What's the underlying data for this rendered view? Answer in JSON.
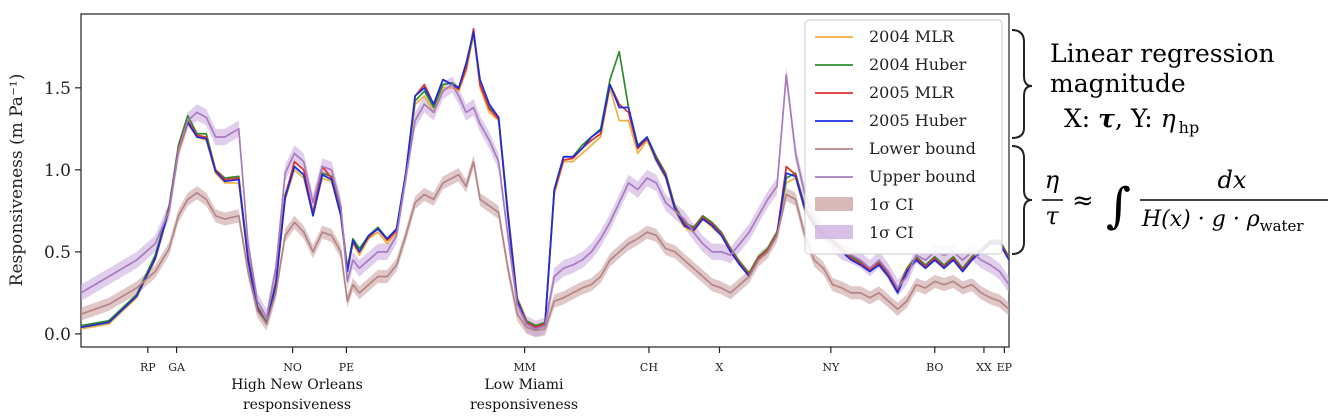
{
  "chart_data": {
    "type": "line",
    "ylabel": "Responsiveness (m Pa⁻¹)",
    "ylim": [
      -0.08,
      1.95
    ],
    "yticks": [
      0.0,
      0.5,
      1.0,
      1.5
    ],
    "ytick_labels": [
      "0.0",
      "0.5",
      "1.0",
      "1.5"
    ],
    "xlim": [
      0,
      100
    ],
    "xticks": [
      {
        "label": "RP",
        "x": 7.2
      },
      {
        "label": "GA",
        "x": 10.3
      },
      {
        "label": "NO",
        "x": 22.8
      },
      {
        "label": "PE",
        "x": 28.6
      },
      {
        "label": "MM",
        "x": 47.8
      },
      {
        "label": "CH",
        "x": 61.2
      },
      {
        "label": "X",
        "x": 68.8
      },
      {
        "label": "NY",
        "x": 80.8
      },
      {
        "label": "BO",
        "x": 92.0
      },
      {
        "label": "XX",
        "x": 97.3
      },
      {
        "label": "EP",
        "x": 99.5
      }
    ],
    "legend_position": "top-right",
    "x": [
      0,
      3,
      6,
      8,
      9.5,
      10.5,
      11.5,
      12.5,
      13.5,
      14.5,
      15.5,
      17,
      18,
      19,
      20,
      21,
      22,
      23,
      24,
      25,
      26,
      27,
      28,
      28.7,
      29.3,
      30,
      31,
      32,
      33,
      34,
      35,
      36,
      37,
      38,
      39,
      40,
      40.7,
      41.5,
      42.3,
      43,
      44,
      45,
      46,
      47,
      48,
      49,
      50,
      51,
      52,
      53,
      54,
      55,
      56,
      57,
      58,
      59,
      60,
      61,
      62,
      63,
      64,
      65,
      66,
      67,
      68,
      69,
      70,
      71,
      72,
      73,
      74,
      75,
      76,
      77,
      78,
      79,
      80,
      81,
      82,
      83,
      84,
      85,
      86,
      87,
      88,
      89,
      90,
      91,
      92,
      93,
      94,
      95,
      96,
      97,
      98,
      99,
      100
    ],
    "series": [
      {
        "name": "2004 MLR",
        "color": "#f0b040",
        "values": [
          0.03,
          0.06,
          0.22,
          0.45,
          0.75,
          1.1,
          1.28,
          1.2,
          1.18,
          0.98,
          0.92,
          0.92,
          0.45,
          0.15,
          0.06,
          0.3,
          0.82,
          1.0,
          0.95,
          0.72,
          0.95,
          0.93,
          0.72,
          0.38,
          0.55,
          0.48,
          0.58,
          0.62,
          0.55,
          0.62,
          0.95,
          1.4,
          1.45,
          1.35,
          1.5,
          1.5,
          1.48,
          1.6,
          1.82,
          1.5,
          1.35,
          1.3,
          0.72,
          0.2,
          0.06,
          0.03,
          0.05,
          0.85,
          1.05,
          1.05,
          1.1,
          1.15,
          1.2,
          1.5,
          1.3,
          1.3,
          1.1,
          1.18,
          1.05,
          0.95,
          0.75,
          0.65,
          0.62,
          0.7,
          0.65,
          0.6,
          0.5,
          0.42,
          0.35,
          0.45,
          0.5,
          0.6,
          0.92,
          0.95,
          0.75,
          0.65,
          0.6,
          0.55,
          0.5,
          0.45,
          0.42,
          0.38,
          0.42,
          0.35,
          0.25,
          0.38,
          0.45,
          0.4,
          0.45,
          0.4,
          0.45,
          0.38,
          0.45,
          0.5,
          0.55,
          0.55,
          0.45
        ]
      },
      {
        "name": "2004 Huber",
        "color": "#2e8b2e",
        "values": [
          0.05,
          0.08,
          0.24,
          0.48,
          0.78,
          1.15,
          1.33,
          1.22,
          1.22,
          1.0,
          0.95,
          0.96,
          0.47,
          0.17,
          0.07,
          0.32,
          0.85,
          1.02,
          0.97,
          0.74,
          0.98,
          0.96,
          0.74,
          0.4,
          0.58,
          0.52,
          0.6,
          0.65,
          0.58,
          0.64,
          0.98,
          1.42,
          1.48,
          1.38,
          1.52,
          1.53,
          1.5,
          1.62,
          1.84,
          1.52,
          1.38,
          1.32,
          0.75,
          0.22,
          0.08,
          0.05,
          0.07,
          0.88,
          1.08,
          1.08,
          1.15,
          1.2,
          1.25,
          1.55,
          1.72,
          1.38,
          1.15,
          1.2,
          1.08,
          0.98,
          0.78,
          0.68,
          0.65,
          0.72,
          0.68,
          0.62,
          0.52,
          0.44,
          0.37,
          0.47,
          0.52,
          0.62,
          0.95,
          0.98,
          0.78,
          0.68,
          0.62,
          0.57,
          0.52,
          0.47,
          0.44,
          0.4,
          0.44,
          0.37,
          0.27,
          0.4,
          0.47,
          0.42,
          0.47,
          0.42,
          0.47,
          0.4,
          0.47,
          0.52,
          0.57,
          0.57,
          0.47
        ]
      },
      {
        "name": "2005 MLR",
        "color": "#e03030",
        "values": [
          0.04,
          0.07,
          0.23,
          0.46,
          0.77,
          1.13,
          1.3,
          1.21,
          1.2,
          1.0,
          0.94,
          0.95,
          0.46,
          0.16,
          0.06,
          0.31,
          0.84,
          1.05,
          1.0,
          0.73,
          1.02,
          0.95,
          0.73,
          0.39,
          0.56,
          0.5,
          0.59,
          0.64,
          0.57,
          0.63,
          0.97,
          1.45,
          1.52,
          1.4,
          1.55,
          1.52,
          1.49,
          1.62,
          1.86,
          1.52,
          1.37,
          1.31,
          0.74,
          0.21,
          0.07,
          0.04,
          0.06,
          0.87,
          1.06,
          1.07,
          1.13,
          1.18,
          1.22,
          1.52,
          1.4,
          1.35,
          1.13,
          1.19,
          1.07,
          0.97,
          0.77,
          0.67,
          0.64,
          0.71,
          0.67,
          0.61,
          0.51,
          0.43,
          0.36,
          0.46,
          0.51,
          0.61,
          1.02,
          0.97,
          0.77,
          0.67,
          0.61,
          0.56,
          0.51,
          0.46,
          0.43,
          0.39,
          0.43,
          0.36,
          0.26,
          0.39,
          0.46,
          0.41,
          0.46,
          0.41,
          0.46,
          0.39,
          0.46,
          0.51,
          0.56,
          0.56,
          0.46
        ]
      },
      {
        "name": "2005 Huber",
        "color": "#1a2ee0",
        "values": [
          0.04,
          0.07,
          0.23,
          0.46,
          0.76,
          1.12,
          1.29,
          1.2,
          1.19,
          0.99,
          0.93,
          0.94,
          0.45,
          0.15,
          0.06,
          0.3,
          0.83,
          1.02,
          0.97,
          0.72,
          0.97,
          0.94,
          0.72,
          0.38,
          0.57,
          0.5,
          0.6,
          0.64,
          0.58,
          0.64,
          0.98,
          1.45,
          1.5,
          1.4,
          1.55,
          1.52,
          1.5,
          1.65,
          1.84,
          1.55,
          1.4,
          1.32,
          0.72,
          0.2,
          0.06,
          0.03,
          0.05,
          0.88,
          1.08,
          1.08,
          1.13,
          1.2,
          1.24,
          1.52,
          1.38,
          1.38,
          1.14,
          1.2,
          1.06,
          0.96,
          0.76,
          0.66,
          0.63,
          0.7,
          0.66,
          0.6,
          0.5,
          0.42,
          0.35,
          0.45,
          0.5,
          0.6,
          0.98,
          0.96,
          0.76,
          0.66,
          0.6,
          0.55,
          0.5,
          0.45,
          0.42,
          0.38,
          0.42,
          0.35,
          0.25,
          0.38,
          0.45,
          0.4,
          0.45,
          0.4,
          0.45,
          0.38,
          0.45,
          0.5,
          0.55,
          0.55,
          0.45
        ]
      },
      {
        "name": "Lower bound",
        "color": "#b58585",
        "values": [
          0.12,
          0.18,
          0.28,
          0.38,
          0.52,
          0.72,
          0.82,
          0.86,
          0.82,
          0.72,
          0.7,
          0.72,
          0.38,
          0.14,
          0.06,
          0.25,
          0.6,
          0.68,
          0.62,
          0.5,
          0.62,
          0.6,
          0.5,
          0.2,
          0.3,
          0.25,
          0.3,
          0.35,
          0.35,
          0.42,
          0.6,
          0.8,
          0.85,
          0.82,
          0.92,
          0.95,
          0.97,
          0.9,
          1.05,
          0.82,
          0.78,
          0.74,
          0.4,
          0.12,
          0.04,
          0.02,
          0.03,
          0.2,
          0.22,
          0.25,
          0.28,
          0.3,
          0.35,
          0.45,
          0.5,
          0.55,
          0.58,
          0.62,
          0.6,
          0.52,
          0.5,
          0.45,
          0.4,
          0.35,
          0.3,
          0.28,
          0.25,
          0.3,
          0.35,
          0.45,
          0.5,
          0.6,
          0.85,
          0.82,
          0.6,
          0.45,
          0.4,
          0.3,
          0.28,
          0.25,
          0.25,
          0.22,
          0.25,
          0.2,
          0.15,
          0.2,
          0.3,
          0.28,
          0.32,
          0.3,
          0.32,
          0.28,
          0.3,
          0.25,
          0.22,
          0.2,
          0.15
        ]
      },
      {
        "name": "Upper bound",
        "color": "#a87bc0",
        "values": [
          0.25,
          0.35,
          0.45,
          0.55,
          0.75,
          1.12,
          1.3,
          1.35,
          1.32,
          1.2,
          1.2,
          1.25,
          0.55,
          0.2,
          0.1,
          0.4,
          0.98,
          1.1,
          1.05,
          0.8,
          1.02,
          1.0,
          0.78,
          0.32,
          0.45,
          0.4,
          0.45,
          0.5,
          0.5,
          0.6,
          0.95,
          1.3,
          1.4,
          1.35,
          1.48,
          1.52,
          1.45,
          1.35,
          1.38,
          1.28,
          1.18,
          1.05,
          0.6,
          0.18,
          0.06,
          0.03,
          0.05,
          0.35,
          0.4,
          0.42,
          0.45,
          0.5,
          0.58,
          0.68,
          0.8,
          0.92,
          0.88,
          0.95,
          0.92,
          0.8,
          0.75,
          0.7,
          0.62,
          0.55,
          0.5,
          0.5,
          0.48,
          0.55,
          0.62,
          0.72,
          0.82,
          0.9,
          1.58,
          1.1,
          0.85,
          0.7,
          0.62,
          0.55,
          0.5,
          0.48,
          0.45,
          0.4,
          0.45,
          0.38,
          0.28,
          0.35,
          0.48,
          0.45,
          0.5,
          0.48,
          0.5,
          0.45,
          0.5,
          0.45,
          0.42,
          0.38,
          0.3
        ]
      }
    ],
    "ci_bands": [
      {
        "label": "1σ CI",
        "color": "#c99a9a",
        "of_series": "Lower bound",
        "halfwidth": 0.04
      },
      {
        "label": "1σ CI",
        "color": "#c8a6dc",
        "of_series": "Upper bound",
        "halfwidth": 0.05
      }
    ],
    "annotations": [
      {
        "line1": "High New Orleans",
        "line2": "responsiveness"
      },
      {
        "line1": "Low Miami",
        "line2": "responsiveness"
      }
    ]
  },
  "side_panel": {
    "heading_line1": "Linear regression",
    "heading_line2": "magnitude",
    "xy_x_prefix": "X: ",
    "xy_x_var": "τ",
    "xy_sep": ",  Y: ",
    "xy_y_var": "η",
    "xy_y_sub": "hp",
    "eq_num": "η",
    "eq_den": "τ",
    "eq_approx": "≈",
    "eq_integral": "∫",
    "eq_frac_num": "dx",
    "eq_frac_den_main": "H(x) · g · ρ",
    "eq_frac_den_sub": "water"
  }
}
